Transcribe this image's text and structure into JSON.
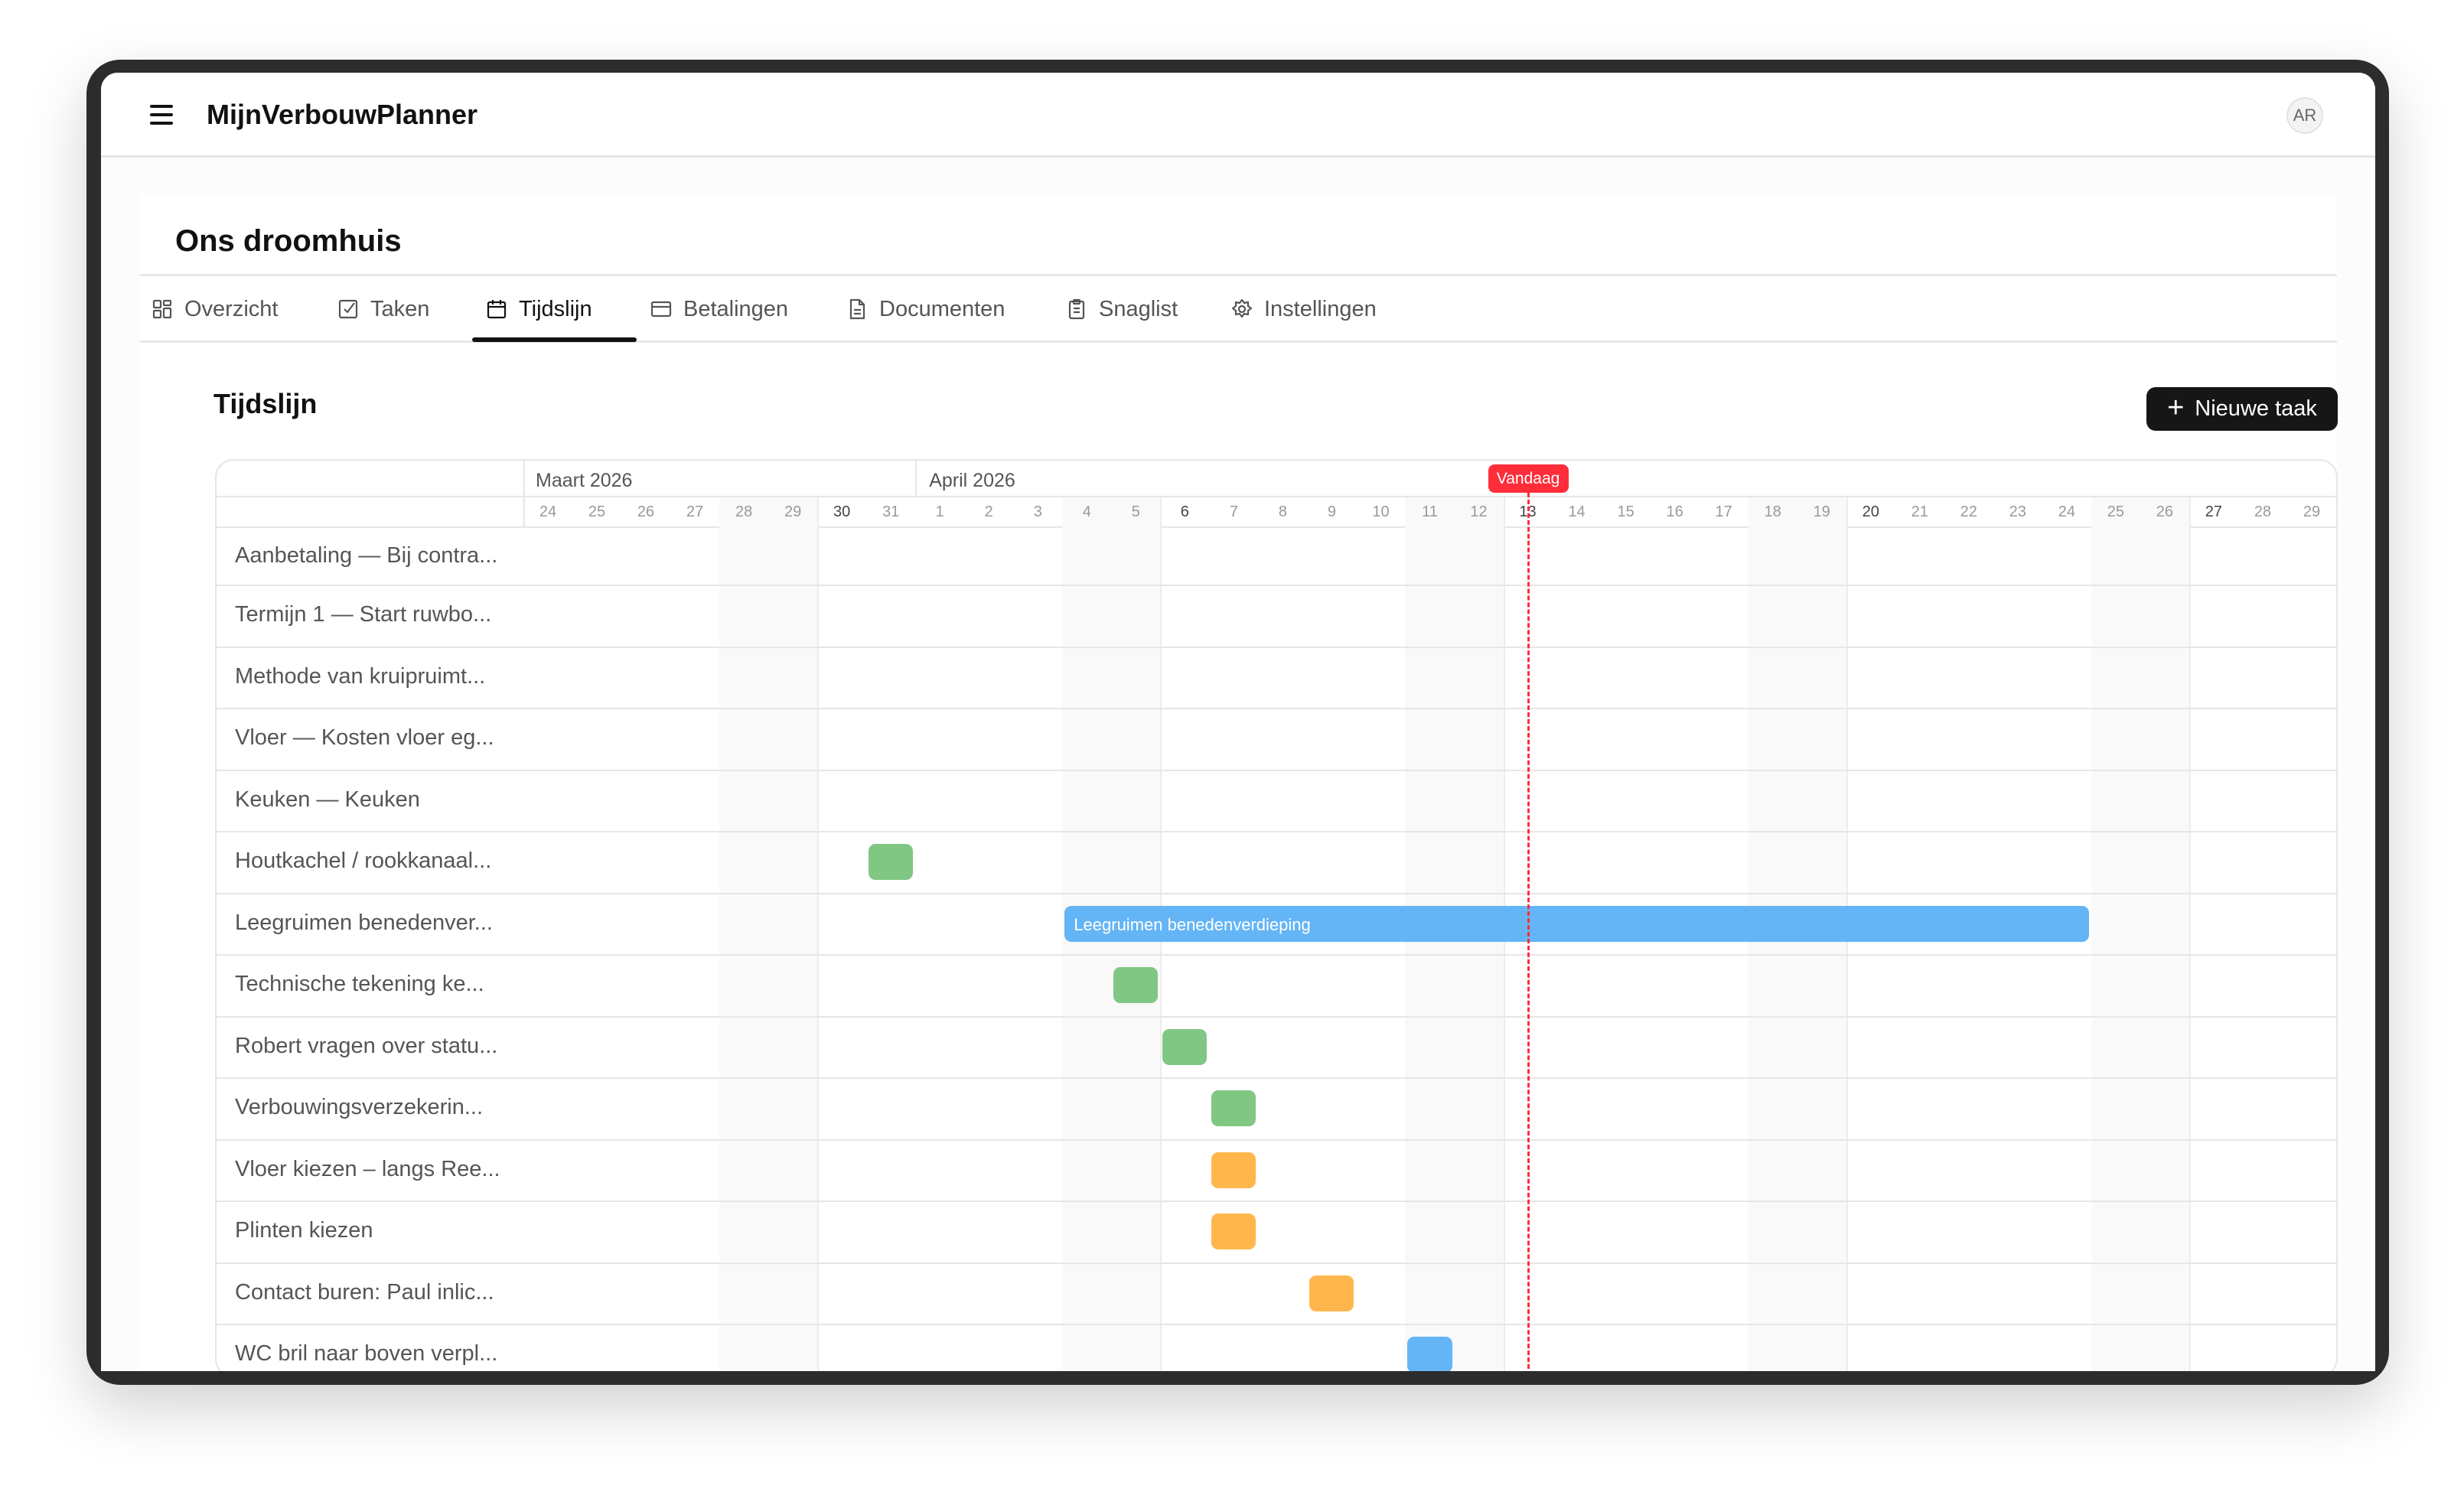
{
  "app": {
    "title": "MijnVerbouwPlanner",
    "avatar_initials": "AR"
  },
  "project": {
    "title": "Ons droomhuis"
  },
  "tabs": [
    {
      "label": "Overzicht",
      "icon": "layout-grid-icon",
      "active": false
    },
    {
      "label": "Taken",
      "icon": "checkbox-icon",
      "active": false
    },
    {
      "label": "Tijdslijn",
      "icon": "calendar-icon",
      "active": true
    },
    {
      "label": "Betalingen",
      "icon": "credit-card-icon",
      "active": false
    },
    {
      "label": "Documenten",
      "icon": "file-text-icon",
      "active": false
    },
    {
      "label": "Snaglist",
      "icon": "clipboard-list-icon",
      "active": false
    },
    {
      "label": "Instellingen",
      "icon": "gear-icon",
      "active": false
    }
  ],
  "timeline": {
    "title": "Tijdslijn",
    "new_task_label": "Nieuwe taak",
    "today_label": "Vandaag",
    "today": "2026-04-13",
    "months": [
      {
        "label": "Maart 2026",
        "start": "2026-03-24"
      },
      {
        "label": "April 2026",
        "start": "2026-04-01"
      }
    ],
    "range": {
      "start": "2026-03-24",
      "end": "2026-04-29"
    },
    "days": [
      "24",
      "25",
      "26",
      "27",
      "28",
      "29",
      "30",
      "31",
      "1",
      "2",
      "3",
      "4",
      "5",
      "6",
      "7",
      "8",
      "9",
      "10",
      "11",
      "12",
      "13",
      "14",
      "15",
      "16",
      "17",
      "18",
      "19",
      "20",
      "21",
      "22",
      "23",
      "24",
      "25",
      "26",
      "27",
      "28",
      "29"
    ],
    "colors": {
      "green": "#81c784",
      "blue": "#64b5f6",
      "orange": "#ffb74d",
      "today": "#ff2d3a"
    },
    "rows": [
      {
        "label": "Aanbetaling — Bij contra..."
      },
      {
        "label": "Termijn 1 — Start ruwbo..."
      },
      {
        "label": "Methode van kruipruimt..."
      },
      {
        "label": "Vloer — Kosten vloer eg..."
      },
      {
        "label": "Keuken — Keuken"
      },
      {
        "label": "Houtkachel / rookkanaal...",
        "bar": {
          "start": "2026-03-31",
          "end": "2026-03-31",
          "color": "green"
        }
      },
      {
        "label": "Leegruimen benedenver...",
        "bar": {
          "start": "2026-04-04",
          "end": "2026-04-24",
          "color": "blue",
          "text": "Leegruimen benedenverdieping"
        }
      },
      {
        "label": "Technische tekening ke...",
        "bar": {
          "start": "2026-04-05",
          "end": "2026-04-05",
          "color": "green"
        }
      },
      {
        "label": "Robert vragen over statu...",
        "bar": {
          "start": "2026-04-06",
          "end": "2026-04-06",
          "color": "green"
        }
      },
      {
        "label": "Verbouwingsverzekerin...",
        "bar": {
          "start": "2026-04-07",
          "end": "2026-04-07",
          "color": "green"
        }
      },
      {
        "label": "Vloer kiezen – langs Ree...",
        "bar": {
          "start": "2026-04-07",
          "end": "2026-04-07",
          "color": "orange"
        }
      },
      {
        "label": "Plinten kiezen",
        "bar": {
          "start": "2026-04-07",
          "end": "2026-04-07",
          "color": "orange"
        }
      },
      {
        "label": "Contact buren: Paul inlic...",
        "bar": {
          "start": "2026-04-09",
          "end": "2026-04-09",
          "color": "orange"
        }
      },
      {
        "label": "WC bril naar boven verpl...",
        "bar": {
          "start": "2026-04-11",
          "end": "2026-04-11",
          "color": "blue"
        }
      }
    ]
  }
}
